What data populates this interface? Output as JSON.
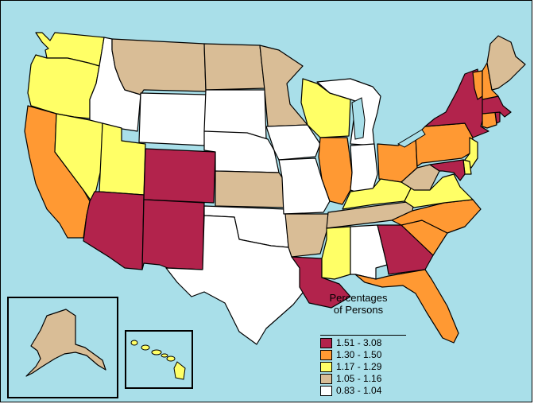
{
  "colors": {
    "water": "#a9dfe9",
    "border": "#000000",
    "classes": [
      "#b2234c",
      "#ff9933",
      "#ffff66",
      "#d9bd96",
      "#ffffff"
    ]
  },
  "legend": {
    "title_line1": "Percentages",
    "title_line2": "of Persons",
    "items": [
      {
        "label": "1.51 - 3.08",
        "class": 0
      },
      {
        "label": "1.30 - 1.50",
        "class": 1
      },
      {
        "label": "1.17 - 1.29",
        "class": 2
      },
      {
        "label": "1.05 - 1.16",
        "class": 3
      },
      {
        "label": "0.83 - 1.04",
        "class": 4
      }
    ]
  },
  "states": [
    {
      "code": "WA",
      "class": 2
    },
    {
      "code": "OR",
      "class": 2
    },
    {
      "code": "CA",
      "class": 1
    },
    {
      "code": "ID",
      "class": 4
    },
    {
      "code": "NV",
      "class": 2
    },
    {
      "code": "UT",
      "class": 2
    },
    {
      "code": "AZ",
      "class": 0
    },
    {
      "code": "MT",
      "class": 3
    },
    {
      "code": "WY",
      "class": 4
    },
    {
      "code": "CO",
      "class": 0
    },
    {
      "code": "NM",
      "class": 0
    },
    {
      "code": "ND",
      "class": 3
    },
    {
      "code": "SD",
      "class": 4
    },
    {
      "code": "NE",
      "class": 4
    },
    {
      "code": "KS",
      "class": 3
    },
    {
      "code": "OK",
      "class": 4
    },
    {
      "code": "TX",
      "class": 4
    },
    {
      "code": "MN",
      "class": 3
    },
    {
      "code": "IA",
      "class": 4
    },
    {
      "code": "MO",
      "class": 4
    },
    {
      "code": "AR",
      "class": 3
    },
    {
      "code": "LA",
      "class": 0
    },
    {
      "code": "WI",
      "class": 2
    },
    {
      "code": "IL",
      "class": 1
    },
    {
      "code": "MI",
      "class": 4
    },
    {
      "code": "IN",
      "class": 4
    },
    {
      "code": "OH",
      "class": 1
    },
    {
      "code": "KY",
      "class": 2
    },
    {
      "code": "TN",
      "class": 3
    },
    {
      "code": "MS",
      "class": 2
    },
    {
      "code": "AL",
      "class": 4
    },
    {
      "code": "GA",
      "class": 0
    },
    {
      "code": "FL",
      "class": 1
    },
    {
      "code": "SC",
      "class": 1
    },
    {
      "code": "NC",
      "class": 1
    },
    {
      "code": "VA",
      "class": 2
    },
    {
      "code": "WV",
      "class": 3
    },
    {
      "code": "PA",
      "class": 1
    },
    {
      "code": "NY",
      "class": 0
    },
    {
      "code": "NJ",
      "class": 2
    },
    {
      "code": "DE",
      "class": 2
    },
    {
      "code": "MD",
      "class": 0
    },
    {
      "code": "CT",
      "class": 1
    },
    {
      "code": "RI",
      "class": 0
    },
    {
      "code": "MA",
      "class": 0
    },
    {
      "code": "VT",
      "class": 1
    },
    {
      "code": "NH",
      "class": 1
    },
    {
      "code": "ME",
      "class": 3
    },
    {
      "code": "AK",
      "class": 3
    },
    {
      "code": "HI",
      "class": 2
    }
  ]
}
